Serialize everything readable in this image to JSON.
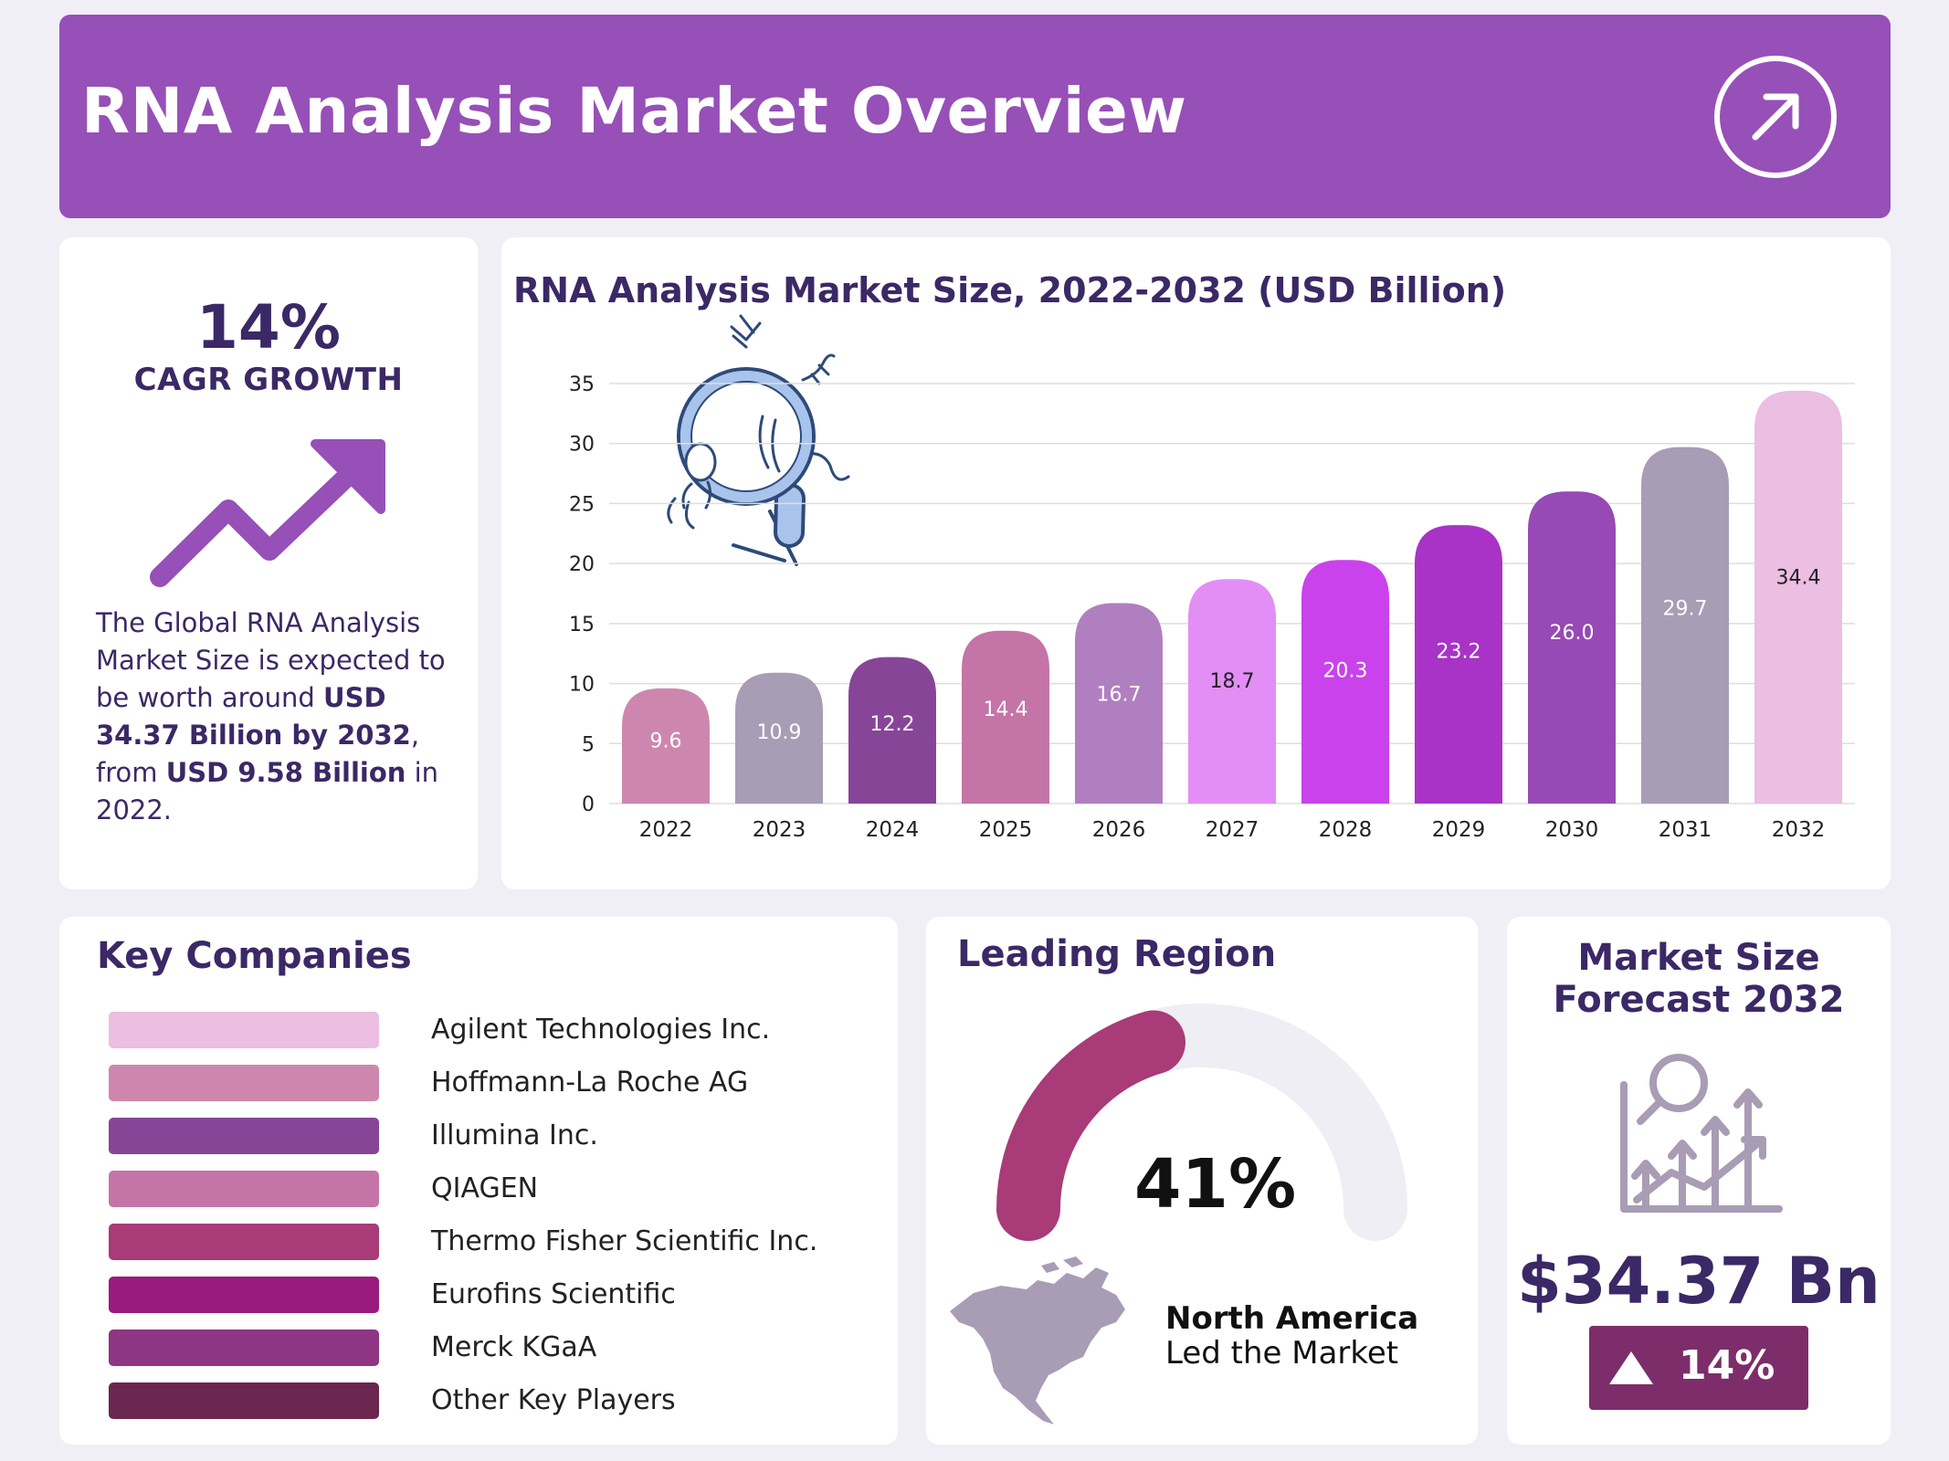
{
  "header": {
    "title": "RNA Analysis Market Overview",
    "icon": "arrow-up-right-icon"
  },
  "cagr": {
    "value": "14%",
    "label": "CAGR GROWTH",
    "icon": "trend-up-arrow-icon",
    "desc_1": "The Global RNA Analysis Market Size is expected to be worth around ",
    "desc_2": "USD 34.37 Billion by 2032",
    "desc_3": ", from ",
    "desc_4": "USD 9.58 Billion",
    "desc_5": " in 2022."
  },
  "chart_data": {
    "type": "bar",
    "title": "RNA Analysis Market Size, 2022-2032 (USD Billion)",
    "xlabel": "",
    "ylabel": "",
    "categories": [
      "2022",
      "2023",
      "2024",
      "2025",
      "2026",
      "2027",
      "2028",
      "2029",
      "2030",
      "2031",
      "2032"
    ],
    "values": [
      9.6,
      10.9,
      12.2,
      14.4,
      16.7,
      18.7,
      20.3,
      23.2,
      26.0,
      29.7,
      34.4
    ],
    "value_labels": [
      "9.6",
      "10.9",
      "12.2",
      "14.4",
      "16.7",
      "18.7",
      "20.3",
      "23.2",
      "26.0",
      "29.7",
      "34.4"
    ],
    "bar_colors": [
      "#cd87ae",
      "#a99cb5",
      "#874598",
      "#c474a7",
      "#b07fc0",
      "#e38ef5",
      "#c942eb",
      "#a833c6",
      "#9749b5",
      "#a99cb5",
      "#ebbee2"
    ],
    "label_colors": [
      "#ffffff",
      "#ffffff",
      "#ffffff",
      "#ffffff",
      "#ffffff",
      "#222222",
      "#ffffff",
      "#ffffff",
      "#ffffff",
      "#ffffff",
      "#222222"
    ],
    "ylim": [
      0,
      35
    ],
    "yticks": [
      0,
      5,
      10,
      15,
      20,
      25,
      30,
      35
    ],
    "grid": true,
    "legend": "none",
    "decoration": "magnifying-glass-dna-icon"
  },
  "companies": {
    "title": "Key Companies",
    "items": [
      {
        "name": "Agilent Technologies Inc.",
        "color": "#ebbee2"
      },
      {
        "name": "Hoffmann-La Roche AG",
        "color": "#cd87ae"
      },
      {
        "name": "Illumina Inc.",
        "color": "#874598"
      },
      {
        "name": "QIAGEN",
        "color": "#c474a7"
      },
      {
        "name": "Thermo Fisher Scientific Inc.",
        "color": "#a83b78"
      },
      {
        "name": "Eurofins Scientific",
        "color": "#9a1b7e"
      },
      {
        "name": "Merck KGaA",
        "color": "#8e3583"
      },
      {
        "name": "Other Key Players",
        "color": "#6b2650"
      }
    ]
  },
  "region": {
    "title": "Leading Region",
    "percent_label": "41%",
    "share": 0.41,
    "gauge_color": "#a83b78",
    "track_color": "#efeef4",
    "name": "North America",
    "subtitle": "Led the Market",
    "icon": "north-america-map-icon"
  },
  "forecast": {
    "title_1": "Market Size",
    "title_2": "Forecast 2032",
    "value": "$34.37 Bn",
    "badge": "14%",
    "icon": "growth-chart-magnifier-icon"
  }
}
